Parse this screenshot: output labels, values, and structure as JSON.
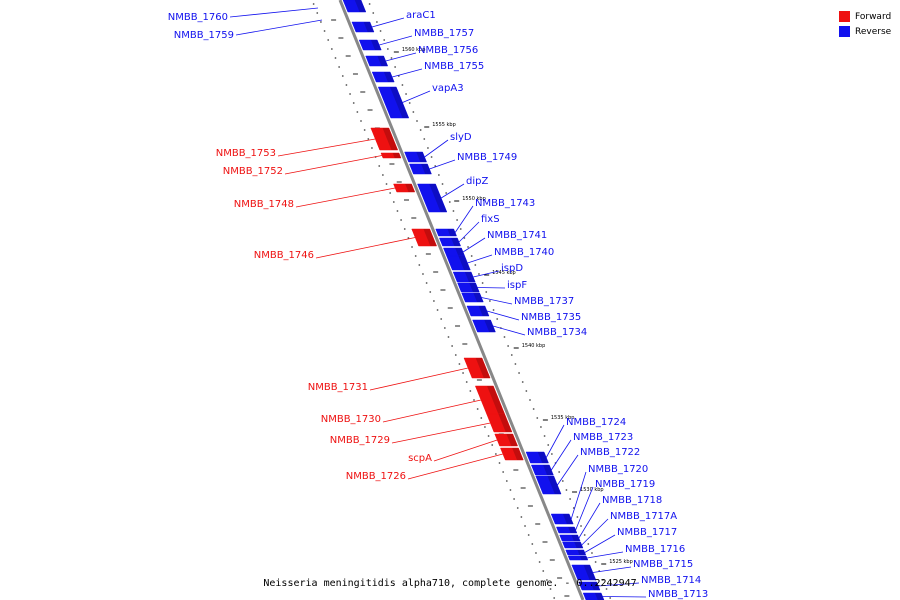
{
  "colors": {
    "forward": "#ee1111",
    "reverse": "#1111ee",
    "backbone": "#888888"
  },
  "legend": [
    {
      "label": "Forward",
      "color": "#ee1111"
    },
    {
      "label": "Reverse",
      "color": "#1111ee"
    }
  ],
  "caption": "Neisseria meningitidis alpha710, complete genome. - 0..2242947",
  "ticks": [
    "1560 kbp",
    "1555 kbp",
    "1550 kbp",
    "1545 kbp",
    "1540 kbp",
    "1535 kbp",
    "1530 kbp",
    "1525 kbp"
  ],
  "reverse_genes": [
    "araC1",
    "NMBB_1757",
    "NMBB_1756",
    "NMBB_1755",
    "vapA3",
    "slyD",
    "NMBB_1749",
    "dipZ",
    "NMBB_1743",
    "fixS",
    "NMBB_1741",
    "NMBB_1740",
    "ispD",
    "ispF",
    "NMBB_1737",
    "NMBB_1735",
    "NMBB_1734",
    "NMBB_1724",
    "NMBB_1723",
    "NMBB_1722",
    "NMBB_1720",
    "NMBB_1719",
    "NMBB_1718",
    "NMBB_1717A",
    "NMBB_1717",
    "NMBB_1716",
    "NMBB_1715",
    "NMBB_1714",
    "NMBB_1713"
  ],
  "reverse_offscreen": [
    "NMBB_1760",
    "NMBB_1759"
  ],
  "forward_genes": [
    "NMBB_1753",
    "NMBB_1752",
    "NMBB_1748",
    "NMBB_1746",
    "NMBB_1731",
    "NMBB_1730",
    "NMBB_1729",
    "scpA",
    "NMBB_1726"
  ]
}
